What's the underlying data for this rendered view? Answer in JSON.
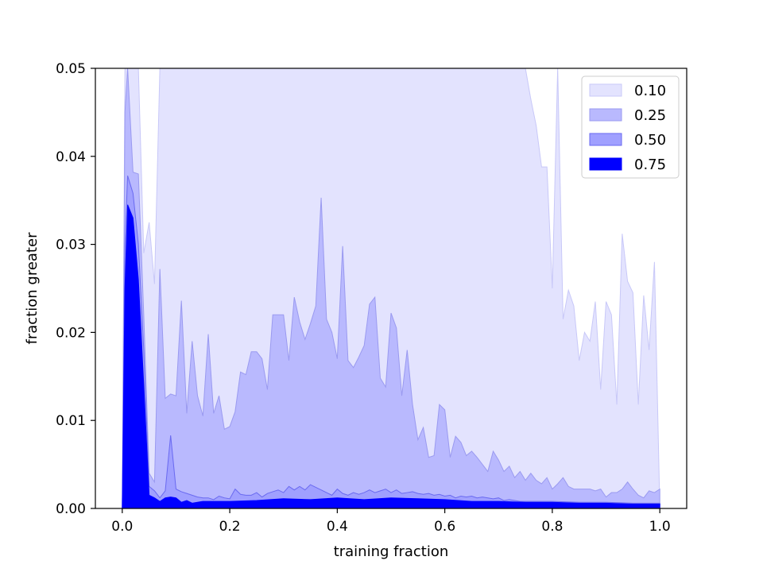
{
  "chart_data": {
    "type": "area",
    "xlabel": "training fraction",
    "ylabel": "fraction greater",
    "xlim": [
      -0.05,
      1.05
    ],
    "ylim": [
      0,
      0.05
    ],
    "xticks": [
      0.0,
      0.2,
      0.4,
      0.6,
      0.8,
      1.0
    ],
    "xtick_labels": [
      "0.0",
      "0.2",
      "0.4",
      "0.6",
      "0.8",
      "1.0"
    ],
    "yticks": [
      0.0,
      0.01,
      0.02,
      0.03,
      0.04,
      0.05
    ],
    "ytick_labels": [
      "0.00",
      "0.01",
      "0.02",
      "0.03",
      "0.04",
      "0.05"
    ],
    "grid": false,
    "legend_position": "top-right",
    "series": [
      {
        "name": "0.10",
        "color": "#e3e3fe",
        "edge": "#c8c8f8",
        "x": [
          0.0,
          0.005,
          0.02,
          0.03,
          0.04,
          0.05,
          0.06,
          0.07,
          0.07,
          0.75,
          0.76,
          0.77,
          0.78,
          0.79,
          0.8,
          0.81,
          0.82,
          0.83,
          0.84,
          0.85,
          0.86,
          0.87,
          0.88,
          0.89,
          0.9,
          0.91,
          0.92,
          0.93,
          0.94,
          0.95,
          0.96,
          0.97,
          0.98,
          0.99,
          1.0
        ],
        "y": [
          0.0,
          0.05,
          0.05,
          0.05,
          0.029,
          0.0325,
          0.0255,
          0.05,
          0.05,
          0.05,
          0.0465,
          0.0435,
          0.0388,
          0.0388,
          0.025,
          0.05,
          0.0215,
          0.0248,
          0.023,
          0.0168,
          0.02,
          0.019,
          0.0235,
          0.0135,
          0.0235,
          0.022,
          0.0118,
          0.0312,
          0.0258,
          0.0245,
          0.0118,
          0.0242,
          0.018,
          0.028,
          0.0
        ]
      },
      {
        "name": "0.25",
        "color": "#b9b9fe",
        "edge": "#9a9af0",
        "x": [
          0.0,
          0.005,
          0.01,
          0.02,
          0.03,
          0.04,
          0.05,
          0.06,
          0.07,
          0.08,
          0.09,
          0.1,
          0.11,
          0.12,
          0.13,
          0.14,
          0.15,
          0.16,
          0.17,
          0.18,
          0.19,
          0.2,
          0.21,
          0.22,
          0.23,
          0.24,
          0.25,
          0.26,
          0.27,
          0.28,
          0.29,
          0.3,
          0.31,
          0.32,
          0.33,
          0.34,
          0.35,
          0.36,
          0.37,
          0.38,
          0.39,
          0.4,
          0.41,
          0.42,
          0.43,
          0.44,
          0.45,
          0.46,
          0.47,
          0.48,
          0.49,
          0.5,
          0.51,
          0.52,
          0.53,
          0.54,
          0.55,
          0.56,
          0.57,
          0.58,
          0.59,
          0.6,
          0.61,
          0.62,
          0.63,
          0.64,
          0.65,
          0.66,
          0.67,
          0.68,
          0.69,
          0.7,
          0.71,
          0.72,
          0.73,
          0.74,
          0.75,
          0.76,
          0.77,
          0.78,
          0.79,
          0.8,
          0.81,
          0.82,
          0.83,
          0.84,
          0.85,
          0.86,
          0.87,
          0.88,
          0.89,
          0.9,
          0.91,
          0.92,
          0.93,
          0.94,
          0.95,
          0.96,
          0.97,
          0.98,
          0.99,
          1.0,
          1.0
        ],
        "y": [
          0.0,
          0.045,
          0.05,
          0.0382,
          0.038,
          0.022,
          0.004,
          0.003,
          0.0272,
          0.0125,
          0.013,
          0.0128,
          0.0236,
          0.0108,
          0.019,
          0.0128,
          0.0105,
          0.0198,
          0.0108,
          0.0128,
          0.009,
          0.0093,
          0.011,
          0.0155,
          0.0152,
          0.0178,
          0.0178,
          0.017,
          0.0135,
          0.022,
          0.022,
          0.022,
          0.0168,
          0.024,
          0.0212,
          0.0192,
          0.021,
          0.023,
          0.0353,
          0.0215,
          0.02,
          0.017,
          0.0298,
          0.0168,
          0.016,
          0.0172,
          0.0185,
          0.0232,
          0.024,
          0.0148,
          0.0138,
          0.0222,
          0.0205,
          0.0128,
          0.018,
          0.0118,
          0.0078,
          0.0092,
          0.0058,
          0.006,
          0.0118,
          0.0112,
          0.0058,
          0.0082,
          0.0075,
          0.006,
          0.0065,
          0.0058,
          0.005,
          0.0042,
          0.0065,
          0.0055,
          0.0042,
          0.0048,
          0.0035,
          0.0042,
          0.0032,
          0.004,
          0.0032,
          0.0028,
          0.0035,
          0.0022,
          0.0028,
          0.0035,
          0.0025,
          0.0022,
          0.0022,
          0.0022,
          0.0022,
          0.002,
          0.0022,
          0.0013,
          0.0018,
          0.0018,
          0.0022,
          0.003,
          0.0022,
          0.0015,
          0.0012,
          0.002,
          0.0018,
          0.0022,
          0.0
        ]
      },
      {
        "name": "0.50",
        "color": "#a0a0ff",
        "edge": "#6a6af0",
        "x": [
          0.0,
          0.005,
          0.01,
          0.02,
          0.03,
          0.04,
          0.05,
          0.06,
          0.07,
          0.08,
          0.09,
          0.1,
          0.11,
          0.12,
          0.13,
          0.14,
          0.15,
          0.16,
          0.17,
          0.18,
          0.19,
          0.2,
          0.21,
          0.22,
          0.23,
          0.24,
          0.25,
          0.26,
          0.27,
          0.28,
          0.29,
          0.3,
          0.31,
          0.32,
          0.33,
          0.34,
          0.35,
          0.36,
          0.37,
          0.38,
          0.39,
          0.4,
          0.41,
          0.42,
          0.43,
          0.44,
          0.45,
          0.46,
          0.47,
          0.48,
          0.49,
          0.5,
          0.51,
          0.52,
          0.53,
          0.54,
          0.55,
          0.56,
          0.57,
          0.58,
          0.59,
          0.6,
          0.61,
          0.62,
          0.63,
          0.64,
          0.65,
          0.66,
          0.67,
          0.68,
          0.69,
          0.7,
          0.71,
          0.72,
          0.73,
          0.74,
          0.75,
          0.8,
          0.85,
          0.9,
          0.95,
          1.0,
          1.0
        ],
        "y": [
          0.0,
          0.03,
          0.0378,
          0.0358,
          0.03,
          0.018,
          0.0025,
          0.002,
          0.0012,
          0.002,
          0.0083,
          0.0022,
          0.0019,
          0.0017,
          0.0015,
          0.0013,
          0.0012,
          0.0012,
          0.001,
          0.0014,
          0.0012,
          0.0011,
          0.0022,
          0.0016,
          0.0015,
          0.0015,
          0.0018,
          0.0013,
          0.0017,
          0.0019,
          0.0021,
          0.0018,
          0.0025,
          0.0021,
          0.0025,
          0.0021,
          0.0027,
          0.0024,
          0.0021,
          0.0018,
          0.0015,
          0.0022,
          0.0017,
          0.0015,
          0.0018,
          0.0016,
          0.0018,
          0.0021,
          0.0018,
          0.002,
          0.0022,
          0.0018,
          0.0021,
          0.0017,
          0.0018,
          0.0019,
          0.0017,
          0.0016,
          0.0017,
          0.0015,
          0.0016,
          0.0014,
          0.0015,
          0.0012,
          0.0014,
          0.0013,
          0.0014,
          0.0012,
          0.0013,
          0.0012,
          0.0011,
          0.0012,
          0.0009,
          0.001,
          0.0009,
          0.0008,
          0.0008,
          0.0008,
          0.0007,
          0.0007,
          0.0006,
          0.0006,
          0.0
        ]
      },
      {
        "name": "0.75",
        "color": "#0000ff",
        "edge": "#0000ff",
        "x": [
          0.0,
          0.005,
          0.01,
          0.02,
          0.03,
          0.04,
          0.05,
          0.06,
          0.07,
          0.08,
          0.09,
          0.1,
          0.11,
          0.12,
          0.13,
          0.15,
          0.2,
          0.25,
          0.3,
          0.35,
          0.4,
          0.45,
          0.5,
          0.55,
          0.6,
          0.65,
          0.7,
          0.75,
          0.8,
          0.85,
          0.9,
          0.95,
          1.0,
          1.0
        ],
        "y": [
          0.0,
          0.025,
          0.0345,
          0.033,
          0.026,
          0.014,
          0.0015,
          0.0012,
          0.0008,
          0.0012,
          0.0013,
          0.0012,
          0.0007,
          0.0009,
          0.0006,
          0.0008,
          0.0008,
          0.0009,
          0.0011,
          0.001,
          0.0012,
          0.001,
          0.0012,
          0.0011,
          0.001,
          0.0008,
          0.0008,
          0.0007,
          0.0007,
          0.0006,
          0.0006,
          0.0005,
          0.0005,
          0.0
        ]
      }
    ]
  }
}
